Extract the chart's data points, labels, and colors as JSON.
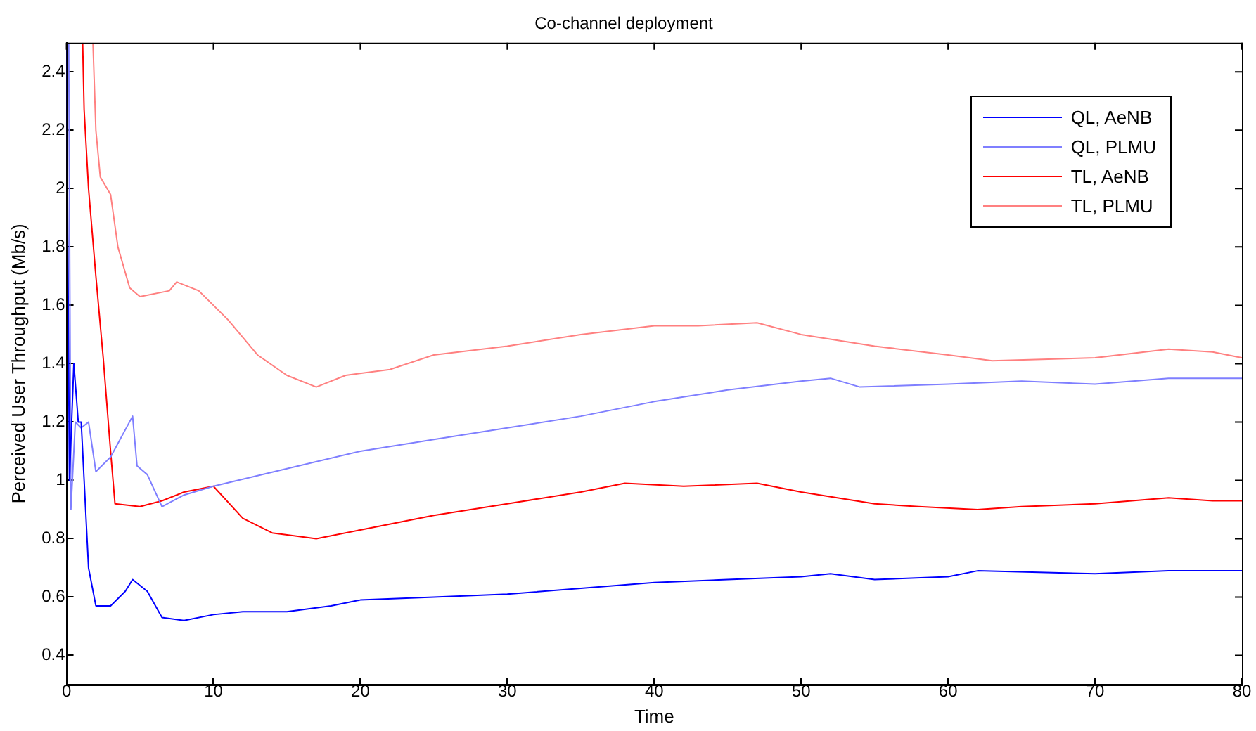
{
  "chart_data": {
    "type": "line",
    "title": "Co-channel deployment",
    "xlabel": "Time",
    "ylabel": "Perceived User Throughput (Mb/s)",
    "xlim": [
      0,
      80
    ],
    "xticks": [
      0,
      10,
      20,
      30,
      40,
      50,
      60,
      70,
      80
    ],
    "ylim": [
      0.3,
      2.5
    ],
    "yticks": [
      0.4,
      0.6,
      0.8,
      1,
      1.2,
      1.4,
      1.6,
      1.8,
      2,
      2.2,
      2.4
    ],
    "grid": false,
    "legend": "top right",
    "marker": "none",
    "line_style": "solid",
    "series": [
      {
        "name": "QL, AeNB",
        "color": "#0000ff",
        "x": [
          0,
          0.2,
          0.5,
          0.8,
          1,
          1.5,
          2,
          3,
          4,
          4.5,
          5.5,
          6.5,
          8,
          10,
          12,
          15,
          18,
          20,
          25,
          30,
          35,
          40,
          45,
          50,
          52,
          55,
          60,
          62,
          70,
          75,
          80
        ],
        "values": [
          2.5,
          1.0,
          1.4,
          1.2,
          1.2,
          0.7,
          0.57,
          0.57,
          0.62,
          0.66,
          0.62,
          0.53,
          0.52,
          0.54,
          0.55,
          0.55,
          0.57,
          0.59,
          0.6,
          0.61,
          0.63,
          0.65,
          0.66,
          0.67,
          0.68,
          0.66,
          0.67,
          0.69,
          0.68,
          0.69,
          0.69
        ]
      },
      {
        "name": "QL, PLMU",
        "color": "#7f7fff",
        "x": [
          0.15,
          0.3,
          0.6,
          1,
          1.5,
          2,
          3,
          4.5,
          4.8,
          5.5,
          6.5,
          8,
          10,
          15,
          20,
          25,
          30,
          35,
          40,
          45,
          50,
          52,
          54,
          60,
          65,
          70,
          75,
          80
        ],
        "values": [
          2.5,
          0.9,
          1.2,
          1.18,
          1.2,
          1.03,
          1.08,
          1.22,
          1.05,
          1.02,
          0.91,
          0.95,
          0.98,
          1.04,
          1.1,
          1.14,
          1.18,
          1.22,
          1.27,
          1.31,
          1.34,
          1.35,
          1.32,
          1.33,
          1.34,
          1.33,
          1.35,
          1.35
        ]
      },
      {
        "name": "TL, AeNB",
        "color": "#ff0000",
        "x": [
          1.1,
          1.2,
          1.5,
          2,
          2.5,
          3,
          3.3,
          5,
          6.5,
          8,
          10,
          12,
          14,
          17,
          20,
          25,
          30,
          35,
          38,
          42,
          47,
          50,
          55,
          58,
          62,
          65,
          70,
          75,
          78,
          80
        ],
        "values": [
          2.5,
          2.27,
          2.0,
          1.7,
          1.42,
          1.1,
          0.92,
          0.91,
          0.93,
          0.96,
          0.98,
          0.87,
          0.82,
          0.8,
          0.83,
          0.88,
          0.92,
          0.96,
          0.99,
          0.98,
          0.99,
          0.96,
          0.92,
          0.91,
          0.9,
          0.91,
          0.92,
          0.94,
          0.93,
          0.93
        ]
      },
      {
        "name": "TL, PLMU",
        "color": "#ff8080",
        "x": [
          1.8,
          2,
          2.3,
          3,
          3.5,
          4.3,
          5,
          7,
          7.5,
          9,
          10,
          11,
          13,
          15,
          17,
          19,
          22,
          25,
          30,
          35,
          40,
          43,
          47,
          50,
          55,
          60,
          63,
          70,
          75,
          78,
          80
        ],
        "values": [
          2.5,
          2.2,
          2.04,
          1.98,
          1.8,
          1.66,
          1.63,
          1.65,
          1.68,
          1.65,
          1.6,
          1.55,
          1.43,
          1.36,
          1.32,
          1.36,
          1.38,
          1.43,
          1.46,
          1.5,
          1.53,
          1.53,
          1.54,
          1.5,
          1.46,
          1.43,
          1.41,
          1.42,
          1.45,
          1.44,
          1.42
        ]
      }
    ]
  }
}
